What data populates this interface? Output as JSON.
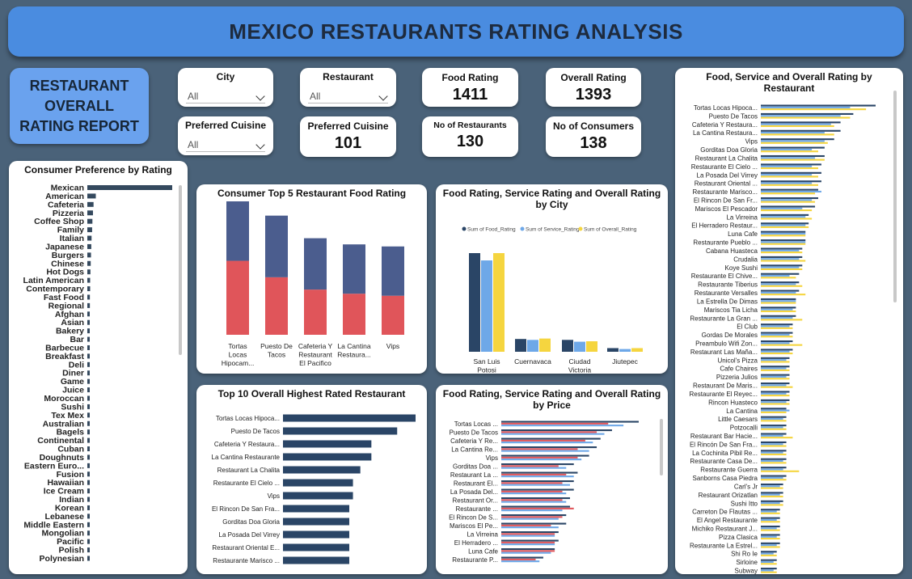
{
  "header": {
    "title": "MEXICO RESTAURANTS RATING ANALYSIS",
    "report_title": "RESTAURANT\nOVERALL\nRATING REPORT"
  },
  "slicers": {
    "city": {
      "label": "City",
      "value": "All"
    },
    "restaurant": {
      "label": "Restaurant",
      "value": "All"
    },
    "preferred_cuisine": {
      "label": "Preferred Cuisine",
      "value": "All"
    }
  },
  "kpis": {
    "food_rating": {
      "label": "Food Rating",
      "value": "1411"
    },
    "overall_rating": {
      "label": "Overall Rating",
      "value": "1393"
    },
    "preferred_cuisine_count": {
      "label": "Preferred Cuisine",
      "value": "101"
    },
    "no_of_restaurants": {
      "label": "No of Restaurants",
      "value": "130"
    },
    "no_of_consumers": {
      "label": "No of Consumers",
      "value": "138"
    }
  },
  "colors": {
    "navy": "#2a4566",
    "slate": "#4b5d8e",
    "red": "#e0555a",
    "light_blue": "#6ea8e8",
    "yellow": "#f5d53f",
    "bar_dark": "#34495e",
    "banner": "#4a8ce0",
    "background": "#4a6279"
  },
  "chart_data": [
    {
      "id": "consumer_preference",
      "type": "bar",
      "orientation": "horizontal",
      "title": "Consumer Preference by Rating",
      "categories": [
        "Mexican",
        "American",
        "Cafeteria",
        "Pizzeria",
        "Coffee Shop",
        "Family",
        "Italian",
        "Japanese",
        "Burgers",
        "Chinese",
        "Hot Dogs",
        "Latin American",
        "Contemporary",
        "Fast Food",
        "Regional",
        "Afghan",
        "Asian",
        "Bakery",
        "Bar",
        "Barbecue",
        "Breakfast",
        "Deli",
        "Diner",
        "Game",
        "Juice",
        "Moroccan",
        "Sushi",
        "Tex Mex",
        "Australian",
        "Bagels",
        "Continental",
        "Cuban",
        "Doughnuts",
        "Eastern Euro...",
        "Fusion",
        "Hawaiian",
        "Ice Cream",
        "Indian",
        "Korean",
        "Lebanese",
        "Middle Eastern",
        "Mongolian",
        "Pacific",
        "Polish",
        "Polynesian"
      ],
      "values": [
        300,
        30,
        22,
        20,
        18,
        17,
        15,
        14,
        13,
        12,
        11,
        10,
        10,
        9,
        9,
        8,
        8,
        8,
        7,
        7,
        7,
        7,
        6,
        6,
        6,
        6,
        6,
        6,
        5,
        5,
        5,
        5,
        5,
        5,
        5,
        5,
        5,
        5,
        5,
        5,
        5,
        5,
        5,
        5,
        5
      ]
    },
    {
      "id": "top5_food",
      "type": "bar",
      "stacked": true,
      "title": "Consumer Top 5 Restaurant Food Rating",
      "categories": [
        "Tortas Locas Hipocam...",
        "Puesto De Tacos",
        "Cafeteria Y Restaurant El Pacifico",
        "La Cantina Restaura...",
        "Vips"
      ],
      "series": [
        {
          "values": [
            36,
            28,
            22,
            20,
            19
          ]
        },
        {
          "values": [
            37,
            30,
            25,
            24,
            24
          ]
        }
      ]
    },
    {
      "id": "rating_by_city",
      "type": "bar",
      "title": "Food Rating, Service Rating and Overall Rating by City",
      "categories": [
        "San Luis Potosi",
        "Cuernavaca",
        "Ciudad Victoria",
        "Jiutepec"
      ],
      "series": [
        {
          "name": "Sum of Food_Rating",
          "values": [
            1080,
            140,
            130,
            40
          ]
        },
        {
          "name": "Sum of Service_Rating",
          "values": [
            1000,
            130,
            110,
            30
          ]
        },
        {
          "name": "Sum of Overall_Rating",
          "values": [
            1080,
            145,
            115,
            40
          ]
        }
      ]
    },
    {
      "id": "top10_overall",
      "type": "bar",
      "orientation": "horizontal",
      "title": "Top 10 Overall Highest Rated Restaurant",
      "categories": [
        "Tortas Locas Hipoca...",
        "Puesto De Tacos",
        "Cafeteria Y Restaura...",
        "La Cantina Restaurante",
        "Restaurant La Chalita",
        "Restaurante El Cielo ...",
        "Vips",
        "El Rincon De San Fra...",
        "Gorditas Doa Gloria",
        "La Posada Del Virrey",
        "Restaurant Oriental E...",
        "Restaurante Marisco ..."
      ],
      "values": [
        36,
        31,
        24,
        24,
        21,
        19,
        19,
        18,
        18,
        18,
        18,
        18
      ]
    },
    {
      "id": "rating_by_price",
      "type": "bar",
      "orientation": "horizontal",
      "title": "Food Rating, Service Rating and Overall Rating by Price",
      "categories": [
        "Tortas Locas ...",
        "Puesto De Tacos",
        "Cafeteria Y Re...",
        "La Cantina Re...",
        "Vips",
        "Gorditas Doa ...",
        "Restaurant La ...",
        "Restaurant El...",
        "La Posada Del...",
        "Restaurant Or...",
        "Restaurante ...",
        "El Rincon De S...",
        "Mariscos El Pe...",
        "La Virreina",
        "El Herradero ...",
        "Luna Cafe",
        "Restaurante P..."
      ],
      "series": [
        {
          "values": [
            36,
            29,
            26,
            25,
            23,
            19,
            20,
            19,
            19,
            18,
            18,
            17,
            17,
            15,
            15,
            14,
            11
          ]
        },
        {
          "values": [
            28,
            25,
            22,
            20,
            20,
            15,
            17,
            16,
            16,
            16,
            19,
            16,
            13,
            14,
            14,
            14,
            9
          ]
        },
        {
          "values": [
            32,
            27,
            24,
            23,
            21,
            17,
            19,
            18,
            17,
            17,
            16,
            15,
            15,
            14,
            14,
            13,
            10
          ]
        }
      ]
    },
    {
      "id": "rating_by_restaurant",
      "type": "bar",
      "orientation": "horizontal",
      "title": "Food, Service and Overall Rating by Restaurant",
      "categories": [
        "Tortas Locas Hipoca...",
        "Puesto De Tacos",
        "Cafeteria Y Restaura...",
        "La Cantina Restaura...",
        "Vips",
        "Gorditas Doa Gloria",
        "Restaurant La Chalita",
        "Restaurante El Cielo ...",
        "La Posada Del Virrey",
        "Restaurant Oriental ...",
        "Restaurante Marisco...",
        "El Rincon De San Fr...",
        "Mariscos El Pescador",
        "La Virreina",
        "El Herradero Restaur...",
        "Luna Cafe",
        "Restaurante Pueblo ...",
        "Cabana Huasteca",
        "Crudalia",
        "Koye Sushi",
        "Restaurante El Chive...",
        "Restaurante Tiberius",
        "Restaurante Versalles",
        "La Estrella De Dimas",
        "Mariscos Tia Licha",
        "Restaurante La Gran ...",
        "El Club",
        "Gordas De Morales",
        "Preambulo Wifi Zon...",
        "Restaurant Las Maña...",
        "Unicol's Pizza",
        "Cafe Chaires",
        "Pizzeria Julios",
        "Restaurant De Maris...",
        "Restaurante El Reyec...",
        "Rincon Huasteco",
        "La Cantina",
        "Little Caesars",
        "Potzocalli",
        "Restaurant Bar Hacie...",
        "El Rincón De San Fra...",
        "La Cochinita Pibil Re...",
        "Restaurante Casa De...",
        "Restaurante Guerra",
        "Sanborns Casa Piedra",
        "Carl's Jr",
        "Restaurant Orizatlan",
        "Sushi Itto",
        "Carreton De Flautas ...",
        "El Angel Restaurante",
        "Michiko Restaurant J...",
        "Pizza Clasica",
        "Restaurante La Estrel...",
        "Shi Ro Ie",
        "Sirloine",
        "Subway"
      ],
      "series": [
        {
          "values": [
            36,
            29,
            25,
            25,
            23,
            20,
            20,
            19,
            19,
            19,
            18,
            18,
            17,
            15,
            15,
            14,
            14,
            13,
            13,
            13,
            12,
            12,
            12,
            11,
            11,
            11,
            10,
            10,
            10,
            10,
            9,
            9,
            9,
            9,
            9,
            9,
            8,
            8,
            8,
            8,
            8,
            8,
            8,
            8,
            8,
            7,
            7,
            7,
            6,
            6,
            6,
            6,
            6,
            5,
            5,
            5
          ]
        },
        {
          "values": [
            28,
            25,
            22,
            20,
            20,
            16,
            17,
            16,
            16,
            16,
            19,
            16,
            13,
            14,
            14,
            14,
            14,
            12,
            12,
            12,
            9,
            11,
            11,
            11,
            10,
            10,
            9,
            9,
            9,
            9,
            8,
            8,
            8,
            8,
            8,
            8,
            9,
            7,
            7,
            7,
            7,
            7,
            7,
            7,
            7,
            6,
            6,
            6,
            5,
            5,
            5,
            5,
            5,
            4,
            4,
            4
          ]
        },
        {
          "values": [
            33,
            28,
            23,
            23,
            21,
            18,
            20,
            18,
            18,
            18,
            17,
            17,
            16,
            16,
            15,
            14,
            14,
            13,
            14,
            13,
            11,
            13,
            14,
            11,
            11,
            13,
            10,
            10,
            13,
            10,
            9,
            9,
            9,
            10,
            9,
            9,
            8,
            8,
            8,
            10,
            8,
            8,
            8,
            12,
            8,
            7,
            7,
            7,
            6,
            6,
            6,
            6,
            6,
            5,
            5,
            5
          ]
        }
      ]
    }
  ]
}
